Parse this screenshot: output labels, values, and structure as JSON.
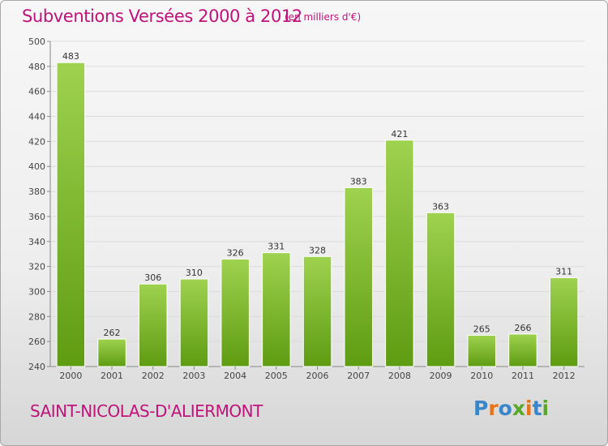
{
  "header": {
    "title": "Subventions Versées 2000 à 2012",
    "subtitle": "(en milliers d'€)"
  },
  "footer": {
    "place": "SAINT-NICOLAS-D'ALIERMONT",
    "logo": {
      "text": "Proxiti",
      "colors": [
        "#3a86c8",
        "#e8731a",
        "#3a86c8",
        "#58a82a",
        "#e8731a",
        "#3a86c8",
        "#58a82a"
      ]
    }
  },
  "colors": {
    "title": "#c0127a",
    "bar_top": "#9fd24f",
    "bar_bottom": "#5e9c12",
    "gridline": "#dcdcdc"
  },
  "chart_data": {
    "type": "bar",
    "categories": [
      "2000",
      "2001",
      "2002",
      "2003",
      "2004",
      "2005",
      "2006",
      "2007",
      "2008",
      "2009",
      "2010",
      "2011",
      "2012"
    ],
    "values": [
      483,
      262,
      306,
      310,
      326,
      331,
      328,
      383,
      421,
      363,
      265,
      266,
      311
    ],
    "title": "Subventions Versées 2000 à 2012",
    "ylim": [
      240,
      500
    ],
    "yticks": [
      240,
      260,
      280,
      300,
      320,
      340,
      360,
      380,
      400,
      420,
      440,
      460,
      480,
      500
    ],
    "grid": true,
    "data_labels": true
  }
}
